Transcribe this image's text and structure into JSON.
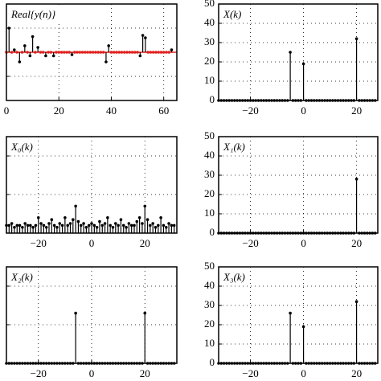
{
  "chart_data": [
    {
      "type": "stem",
      "title": "Real{y(n)}",
      "color": "#000000",
      "baseline_color": "#e0201c",
      "grid": true,
      "ytick_labels": false,
      "xlim": [
        0,
        65
      ],
      "ylim": [
        -2,
        2
      ],
      "xticks": [
        0,
        20,
        40,
        60
      ],
      "yticks": [
        -1,
        0,
        1
      ],
      "x": [
        0,
        1,
        2,
        3,
        4,
        5,
        6,
        7,
        8,
        9,
        10,
        11,
        12,
        13,
        14,
        15,
        16,
        17,
        18,
        19,
        20,
        21,
        22,
        23,
        24,
        25,
        26,
        27,
        28,
        29,
        30,
        31,
        32,
        33,
        34,
        35,
        36,
        37,
        38,
        39,
        40,
        41,
        42,
        43,
        44,
        45,
        46,
        47,
        48,
        49,
        50,
        51,
        52,
        53,
        54,
        55,
        56,
        57,
        58,
        59,
        60,
        61,
        62,
        63
      ],
      "values": [
        0,
        1.0,
        0,
        0.1,
        0,
        -0.4,
        0,
        0.27,
        0,
        -0.15,
        0.65,
        0,
        0.2,
        0,
        0,
        -0.15,
        0,
        0,
        -0.15,
        0,
        0,
        0,
        0,
        0,
        0,
        -0.1,
        0,
        0,
        0,
        0,
        0,
        0,
        0,
        0,
        0,
        0,
        0,
        0,
        -0.4,
        0.27,
        0,
        0,
        0,
        0,
        0,
        0,
        0,
        0,
        0,
        0,
        0,
        -0.15,
        0.7,
        0.6,
        0,
        0,
        0,
        0,
        0,
        0,
        0,
        0,
        0,
        0.1
      ]
    },
    {
      "type": "stem",
      "title": "X(k)",
      "color": "#000000",
      "grid": true,
      "ytick_labels": true,
      "xlim": [
        -32,
        28
      ],
      "ylim": [
        0,
        50
      ],
      "xticks": [
        {
          "value": -20,
          "label": "−20"
        },
        0,
        20
      ],
      "yticks": [
        0,
        10,
        20,
        30,
        40,
        50
      ],
      "x": [
        -32,
        -31,
        -30,
        -29,
        -28,
        -27,
        -26,
        -25,
        -24,
        -23,
        -22,
        -21,
        -20,
        -19,
        -18,
        -17,
        -16,
        -15,
        -14,
        -13,
        -12,
        -11,
        -10,
        -9,
        -8,
        -7,
        -6,
        -5,
        -4,
        -3,
        -2,
        -1,
        0,
        1,
        2,
        3,
        4,
        5,
        6,
        7,
        8,
        9,
        10,
        11,
        12,
        13,
        14,
        15,
        16,
        17,
        18,
        19,
        20,
        21,
        22,
        23,
        24,
        25,
        26,
        27
      ],
      "values": [
        0,
        0,
        0,
        0,
        0,
        0,
        0,
        0,
        0,
        0,
        0,
        0,
        0,
        0,
        0,
        0,
        0,
        0,
        0,
        0,
        0,
        0,
        0,
        0,
        0,
        0,
        0,
        25,
        0,
        0,
        0,
        0,
        19,
        0,
        0,
        0,
        0,
        0,
        0,
        0,
        0,
        0,
        0,
        0,
        0,
        0,
        0,
        0,
        0,
        0,
        0,
        0,
        32,
        0,
        0,
        0,
        0,
        0,
        0,
        0
      ]
    },
    {
      "type": "stem",
      "title": "X₀(k)",
      "color": "#000000",
      "grid": true,
      "ytick_labels": false,
      "xlim": [
        -32,
        32
      ],
      "ylim": [
        0,
        50
      ],
      "xticks": [
        {
          "value": -20,
          "label": "−20"
        },
        0,
        20
      ],
      "yticks": [
        0,
        20,
        40
      ],
      "x": [
        -32,
        -31,
        -30,
        -29,
        -28,
        -27,
        -26,
        -25,
        -24,
        -23,
        -22,
        -21,
        -20,
        -19,
        -18,
        -17,
        -16,
        -15,
        -14,
        -13,
        -12,
        -11,
        -10,
        -9,
        -8,
        -7,
        -6,
        -5,
        -4,
        -3,
        -2,
        -1,
        0,
        1,
        2,
        3,
        4,
        5,
        6,
        7,
        8,
        9,
        10,
        11,
        12,
        13,
        14,
        15,
        16,
        17,
        18,
        19,
        20,
        21,
        22,
        23,
        24,
        25,
        26,
        27,
        28,
        29,
        30,
        31
      ],
      "values": [
        4,
        4,
        5,
        3,
        4,
        4,
        3,
        5,
        4,
        4,
        3,
        4,
        8,
        5,
        4,
        3,
        5,
        7,
        4,
        3,
        5,
        4,
        8,
        4,
        5,
        7,
        14,
        6,
        4,
        5,
        3,
        4,
        5,
        4,
        3,
        6,
        4,
        5,
        8,
        4,
        3,
        5,
        4,
        7,
        4,
        3,
        5,
        4,
        4,
        6,
        8,
        5,
        14,
        7,
        4,
        5,
        3,
        4,
        8,
        4,
        3,
        5,
        4,
        4
      ]
    },
    {
      "type": "stem",
      "title": "X₁(k)",
      "color": "#000000",
      "grid": true,
      "ytick_labels": true,
      "xlim": [
        -32,
        28
      ],
      "ylim": [
        0,
        50
      ],
      "xticks": [
        {
          "value": -20,
          "label": "−20"
        },
        0,
        20
      ],
      "yticks": [
        0,
        10,
        20,
        30,
        40,
        50
      ],
      "x": [
        -32,
        -31,
        -30,
        -29,
        -28,
        -27,
        -26,
        -25,
        -24,
        -23,
        -22,
        -21,
        -20,
        -19,
        -18,
        -17,
        -16,
        -15,
        -14,
        -13,
        -12,
        -11,
        -10,
        -9,
        -8,
        -7,
        -6,
        -5,
        -4,
        -3,
        -2,
        -1,
        0,
        1,
        2,
        3,
        4,
        5,
        6,
        7,
        8,
        9,
        10,
        11,
        12,
        13,
        14,
        15,
        16,
        17,
        18,
        19,
        20,
        21,
        22,
        23,
        24,
        25,
        26,
        27
      ],
      "values": [
        0,
        0,
        0,
        0,
        0,
        0,
        0,
        0,
        0,
        0,
        0,
        0,
        0,
        0,
        0,
        0,
        0,
        0,
        0,
        0,
        0,
        0,
        0,
        0,
        0,
        0,
        0,
        0,
        0,
        0,
        0,
        0,
        0,
        0,
        0,
        0,
        0,
        0,
        0,
        0,
        0,
        0,
        0,
        0,
        0,
        0,
        0,
        0,
        0,
        0,
        0,
        0,
        28,
        0,
        0,
        0,
        0,
        0,
        0,
        0
      ]
    },
    {
      "type": "stem",
      "title": "X₂(k)",
      "color": "#000000",
      "grid": true,
      "ytick_labels": false,
      "xlim": [
        -32,
        32
      ],
      "ylim": [
        0,
        50
      ],
      "xticks": [
        {
          "value": -20,
          "label": "−20"
        },
        0,
        20
      ],
      "yticks": [
        0,
        20,
        40
      ],
      "x": [
        -32,
        -31,
        -30,
        -29,
        -28,
        -27,
        -26,
        -25,
        -24,
        -23,
        -22,
        -21,
        -20,
        -19,
        -18,
        -17,
        -16,
        -15,
        -14,
        -13,
        -12,
        -11,
        -10,
        -9,
        -8,
        -7,
        -6,
        -5,
        -4,
        -3,
        -2,
        -1,
        0,
        1,
        2,
        3,
        4,
        5,
        6,
        7,
        8,
        9,
        10,
        11,
        12,
        13,
        14,
        15,
        16,
        17,
        18,
        19,
        20,
        21,
        22,
        23,
        24,
        25,
        26,
        27,
        28,
        29,
        30,
        31
      ],
      "values": [
        0,
        0,
        0,
        0,
        0,
        0,
        0,
        0,
        0,
        0,
        0,
        0,
        0,
        0,
        0,
        0,
        0,
        0,
        0,
        0,
        0,
        0,
        0,
        0,
        0,
        0,
        26,
        0,
        0,
        0,
        0,
        0,
        0,
        0,
        0,
        0,
        0,
        0,
        0,
        0,
        0,
        0,
        0,
        0,
        0,
        0,
        0,
        0,
        0,
        0,
        0,
        0,
        26,
        0,
        0,
        0,
        0,
        0,
        0,
        0,
        0,
        0,
        0,
        0
      ]
    },
    {
      "type": "stem",
      "title": "X₃(k)",
      "color": "#000000",
      "grid": true,
      "ytick_labels": true,
      "xlim": [
        -32,
        28
      ],
      "ylim": [
        0,
        50
      ],
      "xticks": [
        {
          "value": -20,
          "label": "−20"
        },
        0,
        20
      ],
      "yticks": [
        0,
        10,
        20,
        30,
        40,
        50
      ],
      "x": [
        -32,
        -31,
        -30,
        -29,
        -28,
        -27,
        -26,
        -25,
        -24,
        -23,
        -22,
        -21,
        -20,
        -19,
        -18,
        -17,
        -16,
        -15,
        -14,
        -13,
        -12,
        -11,
        -10,
        -9,
        -8,
        -7,
        -6,
        -5,
        -4,
        -3,
        -2,
        -1,
        0,
        1,
        2,
        3,
        4,
        5,
        6,
        7,
        8,
        9,
        10,
        11,
        12,
        13,
        14,
        15,
        16,
        17,
        18,
        19,
        20,
        21,
        22,
        23,
        24,
        25,
        26,
        27
      ],
      "values": [
        0,
        0,
        0,
        0,
        0,
        0,
        0,
        0,
        0,
        0,
        0,
        0,
        0,
        0,
        0,
        0,
        0,
        0,
        0,
        0,
        0,
        0,
        0,
        0,
        0,
        0,
        0,
        26,
        0,
        0,
        0,
        0,
        19,
        0,
        0,
        0,
        0,
        0,
        0,
        0,
        0,
        0,
        0,
        0,
        0,
        0,
        0,
        0,
        0,
        0,
        0,
        0,
        32,
        0,
        0,
        0,
        0,
        0,
        0,
        0
      ]
    }
  ]
}
